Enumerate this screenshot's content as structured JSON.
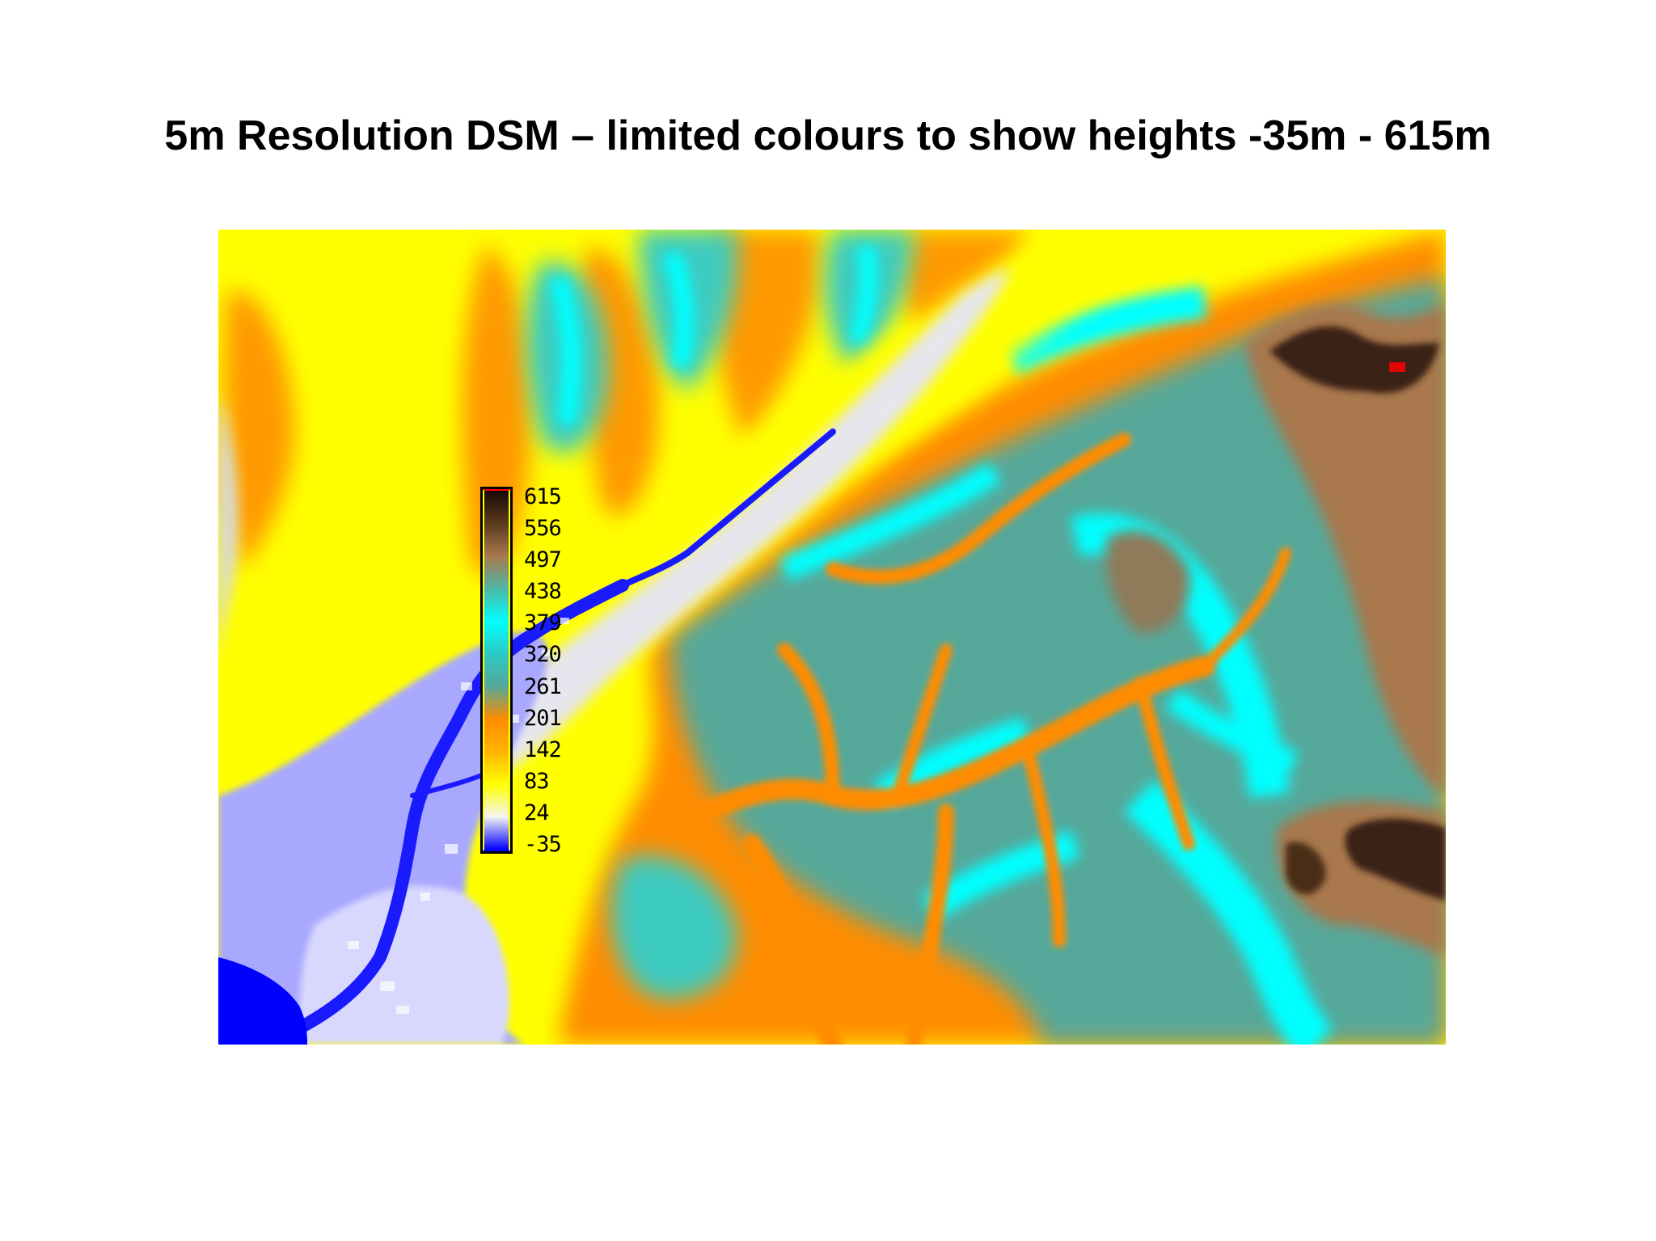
{
  "title": "5m Resolution DSM – limited colours to show heights -35m - 615m",
  "legend": {
    "labels": [
      "615",
      "556",
      "497",
      "438",
      "379",
      "320",
      "261",
      "201",
      "142",
      "83",
      "24",
      "-35"
    ],
    "color_stops": [
      {
        "value": 615,
        "color": "#1a0a05"
      },
      {
        "value": 556,
        "color": "#5a3a1e"
      },
      {
        "value": 497,
        "color": "#a9784e"
      },
      {
        "value": 438,
        "color": "#4fb8a6"
      },
      {
        "value": 379,
        "color": "#00ffff"
      },
      {
        "value": 320,
        "color": "#2cc9c5"
      },
      {
        "value": 261,
        "color": "#56a89a"
      },
      {
        "value": 201,
        "color": "#ff8c00"
      },
      {
        "value": 142,
        "color": "#ffb400"
      },
      {
        "value": 83,
        "color": "#ffff00"
      },
      {
        "value": 24,
        "color": "#f4f4f4"
      },
      {
        "value": -35,
        "color": "#0000ff"
      }
    ],
    "frame_color": "#000000",
    "max_marker_color": "#ff0000"
  },
  "map": {
    "colors": {
      "water": "#0000ff",
      "lowland": "#8888ff",
      "near_sea_level": "#e6e6ee",
      "low": "#ffff00",
      "mid_low": "#ffb400",
      "mid": "#ff8c00",
      "teal": "#56a89a",
      "cyan": "#00ffff",
      "brown": "#a9784e",
      "dark_brown": "#3a2412",
      "summit_marker": "#ff0000"
    }
  }
}
